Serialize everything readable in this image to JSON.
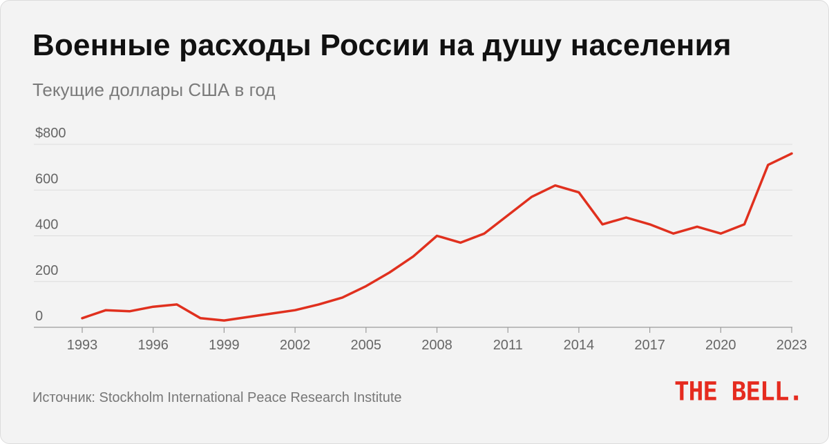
{
  "header": {
    "title": "Военные расходы России на душу населения",
    "subtitle": "Текущие доллары США в год"
  },
  "footer": {
    "source": "Источник: Stockholm International Peace Research Institute",
    "logo_text": "THE BELL."
  },
  "colors": {
    "line": "#e0301e",
    "grid": "#dcdcdc",
    "axis": "#9a9a9a",
    "tick_text": "#666666",
    "logo": "#e52b1f"
  },
  "chart_data": {
    "type": "line",
    "title": "Военные расходы России на душу населения",
    "subtitle": "Текущие доллары США в год",
    "xlabel": "",
    "ylabel": "Текущие доллары США в год",
    "ylim": [
      0,
      800
    ],
    "xlim": [
      1993,
      2023
    ],
    "y_ticks": [
      0,
      200,
      400,
      600,
      800
    ],
    "y_tick_labels": [
      "0",
      "200",
      "400",
      "600",
      "$800"
    ],
    "x_ticks": [
      1993,
      1996,
      1999,
      2002,
      2005,
      2008,
      2011,
      2014,
      2017,
      2020,
      2023
    ],
    "x_tick_labels": [
      "1993",
      "1996",
      "1999",
      "2002",
      "2005",
      "2008",
      "2011",
      "2014",
      "2017",
      "2020",
      "2023"
    ],
    "grid": true,
    "series": [
      {
        "name": "Военные расходы на душу населения",
        "x": [
          1993,
          1994,
          1995,
          1996,
          1997,
          1998,
          1999,
          2000,
          2001,
          2002,
          2003,
          2004,
          2005,
          2006,
          2007,
          2008,
          2009,
          2010,
          2011,
          2012,
          2013,
          2014,
          2015,
          2016,
          2017,
          2018,
          2019,
          2020,
          2021,
          2022,
          2023
        ],
        "values": [
          40,
          75,
          70,
          90,
          100,
          40,
          30,
          45,
          60,
          75,
          100,
          130,
          180,
          240,
          310,
          400,
          370,
          410,
          490,
          570,
          620,
          590,
          450,
          480,
          450,
          410,
          440,
          410,
          450,
          710,
          760
        ]
      }
    ]
  }
}
